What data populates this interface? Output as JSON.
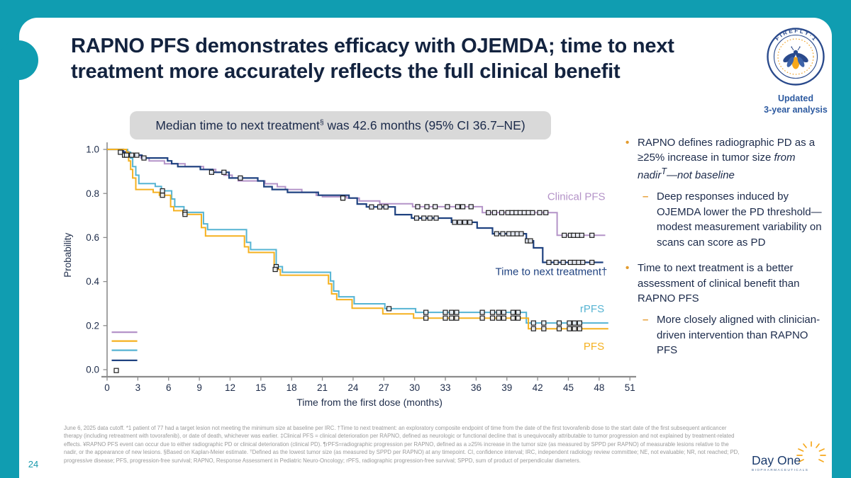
{
  "slide": {
    "title": "RAPNO PFS demonstrates efficacy with OJEMDA; time to next treatment more accurately reflects the full clinical benefit",
    "page_number": "24"
  },
  "badge": {
    "arc_label": "F I R E F L Y · 1",
    "icon": "firefly-icon",
    "subtitle_line1": "Updated",
    "subtitle_line2": "3-year analysis"
  },
  "callout": {
    "prefix": "Median time to next treatment",
    "sup": "§",
    "suffix": " was 42.6 months (95% CI 36.7–NE)"
  },
  "chart_data": {
    "type": "line",
    "subtype": "kaplan-meier-step",
    "title": "",
    "xlabel": "Time from the first dose (months)",
    "ylabel": "Probability",
    "xlim": [
      0,
      51
    ],
    "ylim": [
      0.0,
      1.0
    ],
    "xticks": [
      0,
      3,
      6,
      9,
      12,
      15,
      18,
      21,
      24,
      27,
      30,
      33,
      36,
      39,
      42,
      45,
      48,
      51
    ],
    "yticks": [
      0.0,
      0.2,
      0.4,
      0.6,
      0.8,
      1.0
    ],
    "grid": false,
    "legend_position": "inside-lower-left",
    "series": [
      {
        "name": "Clinical PFS",
        "color": "#b493c8",
        "width": 2,
        "label_pos": [
          48.6,
          0.77
        ],
        "points": [
          [
            0,
            1.0
          ],
          [
            1.4,
            0.99
          ],
          [
            2.1,
            0.974
          ],
          [
            3.3,
            0.961
          ],
          [
            4.1,
            0.948
          ],
          [
            5.6,
            0.935
          ],
          [
            7.6,
            0.922
          ],
          [
            9.4,
            0.909
          ],
          [
            10.6,
            0.896
          ],
          [
            11.4,
            0.883
          ],
          [
            12.2,
            0.87
          ],
          [
            12.8,
            0.857
          ],
          [
            15.4,
            0.844
          ],
          [
            16.6,
            0.831
          ],
          [
            17.4,
            0.818
          ],
          [
            19.0,
            0.805
          ],
          [
            20.4,
            0.792
          ],
          [
            21.0,
            0.785
          ],
          [
            23.4,
            0.779
          ],
          [
            24.6,
            0.766
          ],
          [
            26.6,
            0.753
          ],
          [
            29.8,
            0.74
          ],
          [
            36.6,
            0.713
          ],
          [
            43.9,
            0.61
          ],
          [
            48.6,
            0.61
          ]
        ],
        "censors": [
          [
            1.7,
            0.974
          ],
          [
            23.0,
            0.779
          ],
          [
            30.3,
            0.74
          ],
          [
            31.2,
            0.74
          ],
          [
            32.0,
            0.74
          ],
          [
            33.2,
            0.74
          ],
          [
            34.2,
            0.74
          ],
          [
            34.7,
            0.74
          ],
          [
            35.5,
            0.74
          ],
          [
            37.2,
            0.713
          ],
          [
            37.8,
            0.713
          ],
          [
            38.5,
            0.713
          ],
          [
            39.1,
            0.713
          ],
          [
            39.5,
            0.713
          ],
          [
            39.9,
            0.713
          ],
          [
            40.3,
            0.713
          ],
          [
            40.7,
            0.713
          ],
          [
            41.1,
            0.713
          ],
          [
            41.5,
            0.713
          ],
          [
            42.2,
            0.713
          ],
          [
            42.8,
            0.713
          ],
          [
            44.6,
            0.61
          ],
          [
            45.2,
            0.61
          ],
          [
            45.5,
            0.61
          ],
          [
            45.9,
            0.61
          ],
          [
            46.3,
            0.61
          ],
          [
            47.3,
            0.61
          ]
        ]
      },
      {
        "name": "Time to next treatment†",
        "color": "#1f4280",
        "width": 2.2,
        "label_pos": [
          48.8,
          0.43
        ],
        "points": [
          [
            0,
            1.0
          ],
          [
            1.6,
            0.987
          ],
          [
            2.2,
            0.974
          ],
          [
            3.4,
            0.961
          ],
          [
            5.9,
            0.948
          ],
          [
            6.3,
            0.935
          ],
          [
            6.9,
            0.922
          ],
          [
            9.1,
            0.909
          ],
          [
            10.3,
            0.896
          ],
          [
            11.9,
            0.87
          ],
          [
            14.7,
            0.857
          ],
          [
            15.3,
            0.831
          ],
          [
            16.1,
            0.818
          ],
          [
            17.6,
            0.805
          ],
          [
            20.6,
            0.792
          ],
          [
            23.6,
            0.779
          ],
          [
            24.4,
            0.752
          ],
          [
            25.3,
            0.739
          ],
          [
            28.1,
            0.704
          ],
          [
            29.7,
            0.688
          ],
          [
            33.6,
            0.669
          ],
          [
            36.1,
            0.643
          ],
          [
            37.6,
            0.617
          ],
          [
            40.9,
            0.585
          ],
          [
            41.6,
            0.553
          ],
          [
            42.5,
            0.487
          ],
          [
            48.4,
            0.487
          ]
        ],
        "censors": [
          [
            1.3,
            0.987
          ],
          [
            1.9,
            0.974
          ],
          [
            2.4,
            0.974
          ],
          [
            2.9,
            0.974
          ],
          [
            3.6,
            0.961
          ],
          [
            10.2,
            0.896
          ],
          [
            11.4,
            0.896
          ],
          [
            13.0,
            0.87
          ],
          [
            23.0,
            0.779
          ],
          [
            25.8,
            0.739
          ],
          [
            26.6,
            0.739
          ],
          [
            27.2,
            0.739
          ],
          [
            30.2,
            0.688
          ],
          [
            30.9,
            0.688
          ],
          [
            31.5,
            0.688
          ],
          [
            32.1,
            0.688
          ],
          [
            33.9,
            0.669
          ],
          [
            34.4,
            0.669
          ],
          [
            34.9,
            0.669
          ],
          [
            35.4,
            0.669
          ],
          [
            38.0,
            0.617
          ],
          [
            38.6,
            0.617
          ],
          [
            39.2,
            0.617
          ],
          [
            39.6,
            0.617
          ],
          [
            40.0,
            0.617
          ],
          [
            40.4,
            0.617
          ],
          [
            41.0,
            0.585
          ],
          [
            41.3,
            0.585
          ],
          [
            43.1,
            0.487
          ],
          [
            43.8,
            0.487
          ],
          [
            44.5,
            0.487
          ],
          [
            45.2,
            0.487
          ],
          [
            45.6,
            0.487
          ],
          [
            46.0,
            0.487
          ],
          [
            46.4,
            0.487
          ],
          [
            47.3,
            0.487
          ]
        ]
      },
      {
        "name": "rPFS",
        "color": "#56b4d3",
        "width": 2,
        "label_pos": [
          48.5,
          0.26
        ],
        "points": [
          [
            0,
            1.0
          ],
          [
            2.0,
            0.987
          ],
          [
            2.3,
            0.96
          ],
          [
            2.5,
            0.922
          ],
          [
            2.8,
            0.883
          ],
          [
            3.1,
            0.845
          ],
          [
            4.7,
            0.832
          ],
          [
            5.3,
            0.812
          ],
          [
            6.3,
            0.775
          ],
          [
            6.6,
            0.74
          ],
          [
            7.5,
            0.714
          ],
          [
            9.4,
            0.662
          ],
          [
            9.8,
            0.636
          ],
          [
            13.6,
            0.578
          ],
          [
            14.0,
            0.545
          ],
          [
            16.5,
            0.468
          ],
          [
            17.1,
            0.442
          ],
          [
            21.8,
            0.403
          ],
          [
            22.1,
            0.357
          ],
          [
            22.6,
            0.331
          ],
          [
            24.1,
            0.299
          ],
          [
            27.1,
            0.277
          ],
          [
            30.1,
            0.26
          ],
          [
            40.9,
            0.212
          ],
          [
            48.9,
            0.212
          ]
        ],
        "censors": [
          [
            5.4,
            0.812
          ],
          [
            7.6,
            0.714
          ],
          [
            16.5,
            0.468
          ],
          [
            27.5,
            0.277
          ],
          [
            31.1,
            0.26
          ],
          [
            33.0,
            0.26
          ],
          [
            33.6,
            0.26
          ],
          [
            34.1,
            0.26
          ],
          [
            36.6,
            0.26
          ],
          [
            37.6,
            0.26
          ],
          [
            38.2,
            0.26
          ],
          [
            38.7,
            0.26
          ],
          [
            39.6,
            0.26
          ],
          [
            40.1,
            0.26
          ],
          [
            41.6,
            0.212
          ],
          [
            42.6,
            0.212
          ],
          [
            44.1,
            0.212
          ],
          [
            45.1,
            0.212
          ],
          [
            45.6,
            0.212
          ],
          [
            46.1,
            0.212
          ]
        ]
      },
      {
        "name": "PFS",
        "color": "#f5b120",
        "width": 2,
        "label_pos": [
          48.5,
          0.09
        ],
        "points": [
          [
            0,
            1.0
          ],
          [
            1.9,
            0.987
          ],
          [
            2.1,
            0.948
          ],
          [
            2.3,
            0.909
          ],
          [
            2.5,
            0.87
          ],
          [
            2.8,
            0.818
          ],
          [
            4.5,
            0.805
          ],
          [
            5.1,
            0.792
          ],
          [
            6.2,
            0.74
          ],
          [
            6.5,
            0.722
          ],
          [
            7.4,
            0.705
          ],
          [
            9.2,
            0.645
          ],
          [
            9.6,
            0.607
          ],
          [
            13.4,
            0.558
          ],
          [
            13.8,
            0.532
          ],
          [
            16.3,
            0.455
          ],
          [
            16.9,
            0.429
          ],
          [
            21.6,
            0.39
          ],
          [
            21.9,
            0.344
          ],
          [
            22.4,
            0.318
          ],
          [
            23.9,
            0.279
          ],
          [
            26.9,
            0.253
          ],
          [
            29.9,
            0.234
          ],
          [
            41.1,
            0.186
          ],
          [
            48.9,
            0.186
          ]
        ],
        "censors": [
          [
            5.4,
            0.792
          ],
          [
            7.6,
            0.705
          ],
          [
            16.4,
            0.455
          ],
          [
            31.1,
            0.234
          ],
          [
            33.0,
            0.234
          ],
          [
            33.6,
            0.234
          ],
          [
            34.1,
            0.234
          ],
          [
            36.6,
            0.234
          ],
          [
            37.6,
            0.234
          ],
          [
            38.2,
            0.234
          ],
          [
            38.7,
            0.234
          ],
          [
            39.6,
            0.234
          ],
          [
            40.1,
            0.234
          ],
          [
            41.6,
            0.186
          ],
          [
            42.6,
            0.186
          ],
          [
            44.1,
            0.186
          ],
          [
            45.1,
            0.186
          ],
          [
            45.6,
            0.186
          ],
          [
            46.1,
            0.186
          ]
        ]
      }
    ],
    "legend": {
      "x0": 0.45,
      "x1": 2.95,
      "lines": [
        {
          "color": "#b493c8",
          "y": 0.17
        },
        {
          "color": "#f5b120",
          "y": 0.13
        },
        {
          "color": "#56b4d3",
          "y": 0.088
        },
        {
          "color": "#1f4280",
          "y": 0.042
        }
      ],
      "censor_marker": [
        0.9,
        -0.004
      ]
    }
  },
  "bullets": {
    "b1": {
      "normal": "RAPNO defines radiographic PD as a ≥25% increase in tumor size ",
      "italic": "from nadir",
      "sup": "T",
      "italic2": "—not baseline"
    },
    "b1_sub": "Deep responses induced by OJEMDA lower the PD threshold—modest measurement variability on scans can score as PD",
    "b2": "Time to next treatment is a better assessment of clinical benefit than RAPNO PFS",
    "b2_sub": "More closely aligned with clinician-driven intervention than RAPNO PFS",
    "bullet_glyph": "•",
    "dash_glyph": "–"
  },
  "footnote": "June 6, 2025 data cutoff. *1 patient of 77 had a target lesion not meeting the minimum size at baseline per IRC. †Time to next treatment: an exploratory composite endpoint of time from the date of the first tovorafenib dose to the start date of the first subsequent anticancer therapy (including retreatment with tovorafenib), or date of death, whichever was earlier. ‡Clinical PFS = clinical deterioration per RAPNO, defined as neurologic or functional decline that is unequivocally attributable to tumor progression and not explained by treatment-related effects. ¥RAPNO PFS event can occur due to either radiographic PD or clinical deterioration (clinical PD). ¶rPFS=radiographic progression per RAPNO, defined as a ≥25% increase in the tumor size (as measured by SPPD per RAPNO) of measurable lesions relative to the nadir, or the appearance of new lesions. §Based on Kaplan-Meier estimate. ᵀDefined as the lowest tumor size (as measured by SPPD per RAPNO) at any timepoint.  CI, confidence interval; IRC, independent radiology review committee; NE, not evaluable; NR, not reached; PD, progressive disease; PFS, progression-free survival; RAPNO, Response Assessment in Pediatric Neuro-Oncology; rPFS, radiographic progression-free survival; SPPD, sum of product of perpendicular diameters.",
  "logo": {
    "name": "Day One",
    "sub": "BIOPHARMACEUTICALS",
    "icon": "sunburst-icon"
  },
  "colors": {
    "frame_teal": "#109db1",
    "title_navy": "#13233f",
    "curve_navy": "#1f4280",
    "curve_purple": "#b493c8",
    "curve_lightblue": "#56b4d3",
    "curve_gold": "#f5b120",
    "bullet_gold": "#e39b2d",
    "callout_gray": "#d9d9d9",
    "footnote_gray": "#9a9a9a",
    "page_teal": "#1a9aad"
  }
}
